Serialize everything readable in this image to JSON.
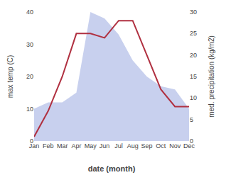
{
  "chart_data": {
    "type": "line",
    "xlabel": "date (month)",
    "ylabel": "max temp (C)",
    "y2label": "med. precipitation (kg/m2)",
    "categories": [
      "Jan",
      "Feb",
      "Mar",
      "Apr",
      "May",
      "Jun",
      "Jul",
      "Aug",
      "Sep",
      "Oct",
      "Nov",
      "Dec"
    ],
    "series": [
      {
        "type": "area",
        "color": "#c8d0ee",
        "values": [
          10,
          12,
          12,
          15,
          40,
          38,
          33,
          25,
          20,
          17,
          16,
          10
        ]
      },
      {
        "type": "line",
        "color": "#b03040",
        "axis": "y2",
        "values": [
          1,
          7,
          15,
          25,
          25,
          24,
          28,
          28,
          20,
          12,
          8,
          8
        ]
      }
    ],
    "ylim": [
      0,
      40
    ],
    "yticks": [
      0,
      10,
      20,
      30,
      40
    ],
    "y2lim": [
      0,
      30
    ],
    "y2ticks": [
      0,
      5,
      10,
      15,
      20,
      25,
      30
    ],
    "grid": false
  }
}
